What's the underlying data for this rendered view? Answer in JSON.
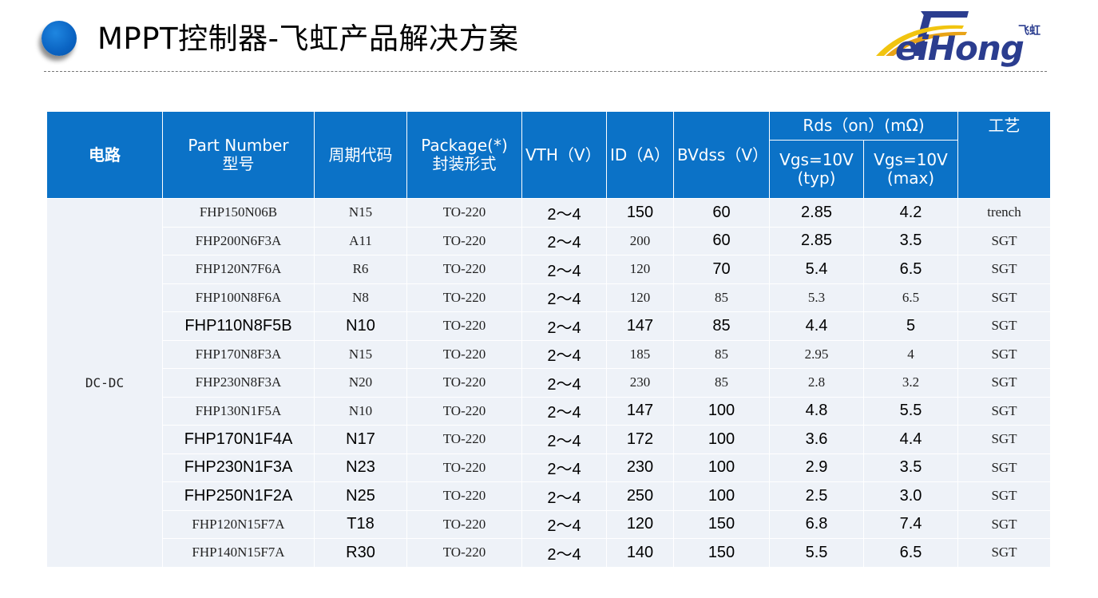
{
  "title": "MPPT控制器-飞虹产品解决方案",
  "logo": {
    "cn": "飞虹",
    "en": "eiHong"
  },
  "table": {
    "headers": {
      "circuit": "电路",
      "part_number": "Part Number\n型号",
      "period_code": "周期代码",
      "package": "Package(*)\n封装形式",
      "vth": "VTH（V）",
      "id": "ID（A）",
      "bvdss": "BVdss（V）",
      "rds_group": "Rds（on）(mΩ)",
      "rds_typ": "Vgs=10V\n(typ)",
      "rds_max": "Vgs=10V\n(max)",
      "process": "工艺"
    },
    "circuit": "DC-DC",
    "rows": [
      {
        "part": "FHP150N06B",
        "code": "N15",
        "pkg": "TO-220",
        "vth": "2～4",
        "id": "150",
        "bvdss": "60",
        "typ": "2.85",
        "max": "4.2",
        "proc": "trench"
      },
      {
        "part": "FHP200N6F3A",
        "code": "A11",
        "pkg": "TO-220",
        "vth": "2～4",
        "id": "200",
        "bvdss": "60",
        "typ": "2.85",
        "max": "3.5",
        "proc": "SGT"
      },
      {
        "part": "FHP120N7F6A",
        "code": "R6",
        "pkg": "TO-220",
        "vth": "2～4",
        "id": "120",
        "bvdss": "70",
        "typ": "5.4",
        "max": "6.5",
        "proc": "SGT"
      },
      {
        "part": "FHP100N8F6A",
        "code": "N8",
        "pkg": "TO-220",
        "vth": "2～4",
        "id": "120",
        "bvdss": "85",
        "typ": "5.3",
        "max": "6.5",
        "proc": "SGT"
      },
      {
        "part": "FHP110N8F5B",
        "code": "N10",
        "pkg": "TO-220",
        "vth": "2～4",
        "id": "147",
        "bvdss": "85",
        "typ": "4.4",
        "max": "5",
        "proc": "SGT"
      },
      {
        "part": "FHP170N8F3A",
        "code": "N15",
        "pkg": "TO-220",
        "vth": "2～4",
        "id": "185",
        "bvdss": "85",
        "typ": "2.95",
        "max": "4",
        "proc": "SGT"
      },
      {
        "part": "FHP230N8F3A",
        "code": "N20",
        "pkg": "TO-220",
        "vth": "2～4",
        "id": "230",
        "bvdss": "85",
        "typ": "2.8",
        "max": "3.2",
        "proc": "SGT"
      },
      {
        "part": "FHP130N1F5A",
        "code": "N10",
        "pkg": "TO-220",
        "vth": "2～4",
        "id": "147",
        "bvdss": "100",
        "typ": "4.8",
        "max": "5.5",
        "proc": "SGT"
      },
      {
        "part": "FHP170N1F4A",
        "code": "N17",
        "pkg": "TO-220",
        "vth": "2～4",
        "id": "172",
        "bvdss": "100",
        "typ": "3.6",
        "max": "4.4",
        "proc": "SGT"
      },
      {
        "part": "FHP230N1F3A",
        "code": "N23",
        "pkg": "TO-220",
        "vth": "2～4",
        "id": "230",
        "bvdss": "100",
        "typ": "2.9",
        "max": "3.5",
        "proc": "SGT"
      },
      {
        "part": "FHP250N1F2A",
        "code": "N25",
        "pkg": "TO-220",
        "vth": "2～4",
        "id": "250",
        "bvdss": "100",
        "typ": "2.5",
        "max": "3.0",
        "proc": "SGT"
      },
      {
        "part": "FHP120N15F7A",
        "code": "T18",
        "pkg": "TO-220",
        "vth": "2～4",
        "id": "120",
        "bvdss": "150",
        "typ": "6.8",
        "max": "7.4",
        "proc": "SGT"
      },
      {
        "part": "FHP140N15F7A",
        "code": "R30",
        "pkg": "TO-220",
        "vth": "2～4",
        "id": "140",
        "bvdss": "150",
        "typ": "5.5",
        "max": "6.5",
        "proc": "SGT"
      }
    ]
  }
}
